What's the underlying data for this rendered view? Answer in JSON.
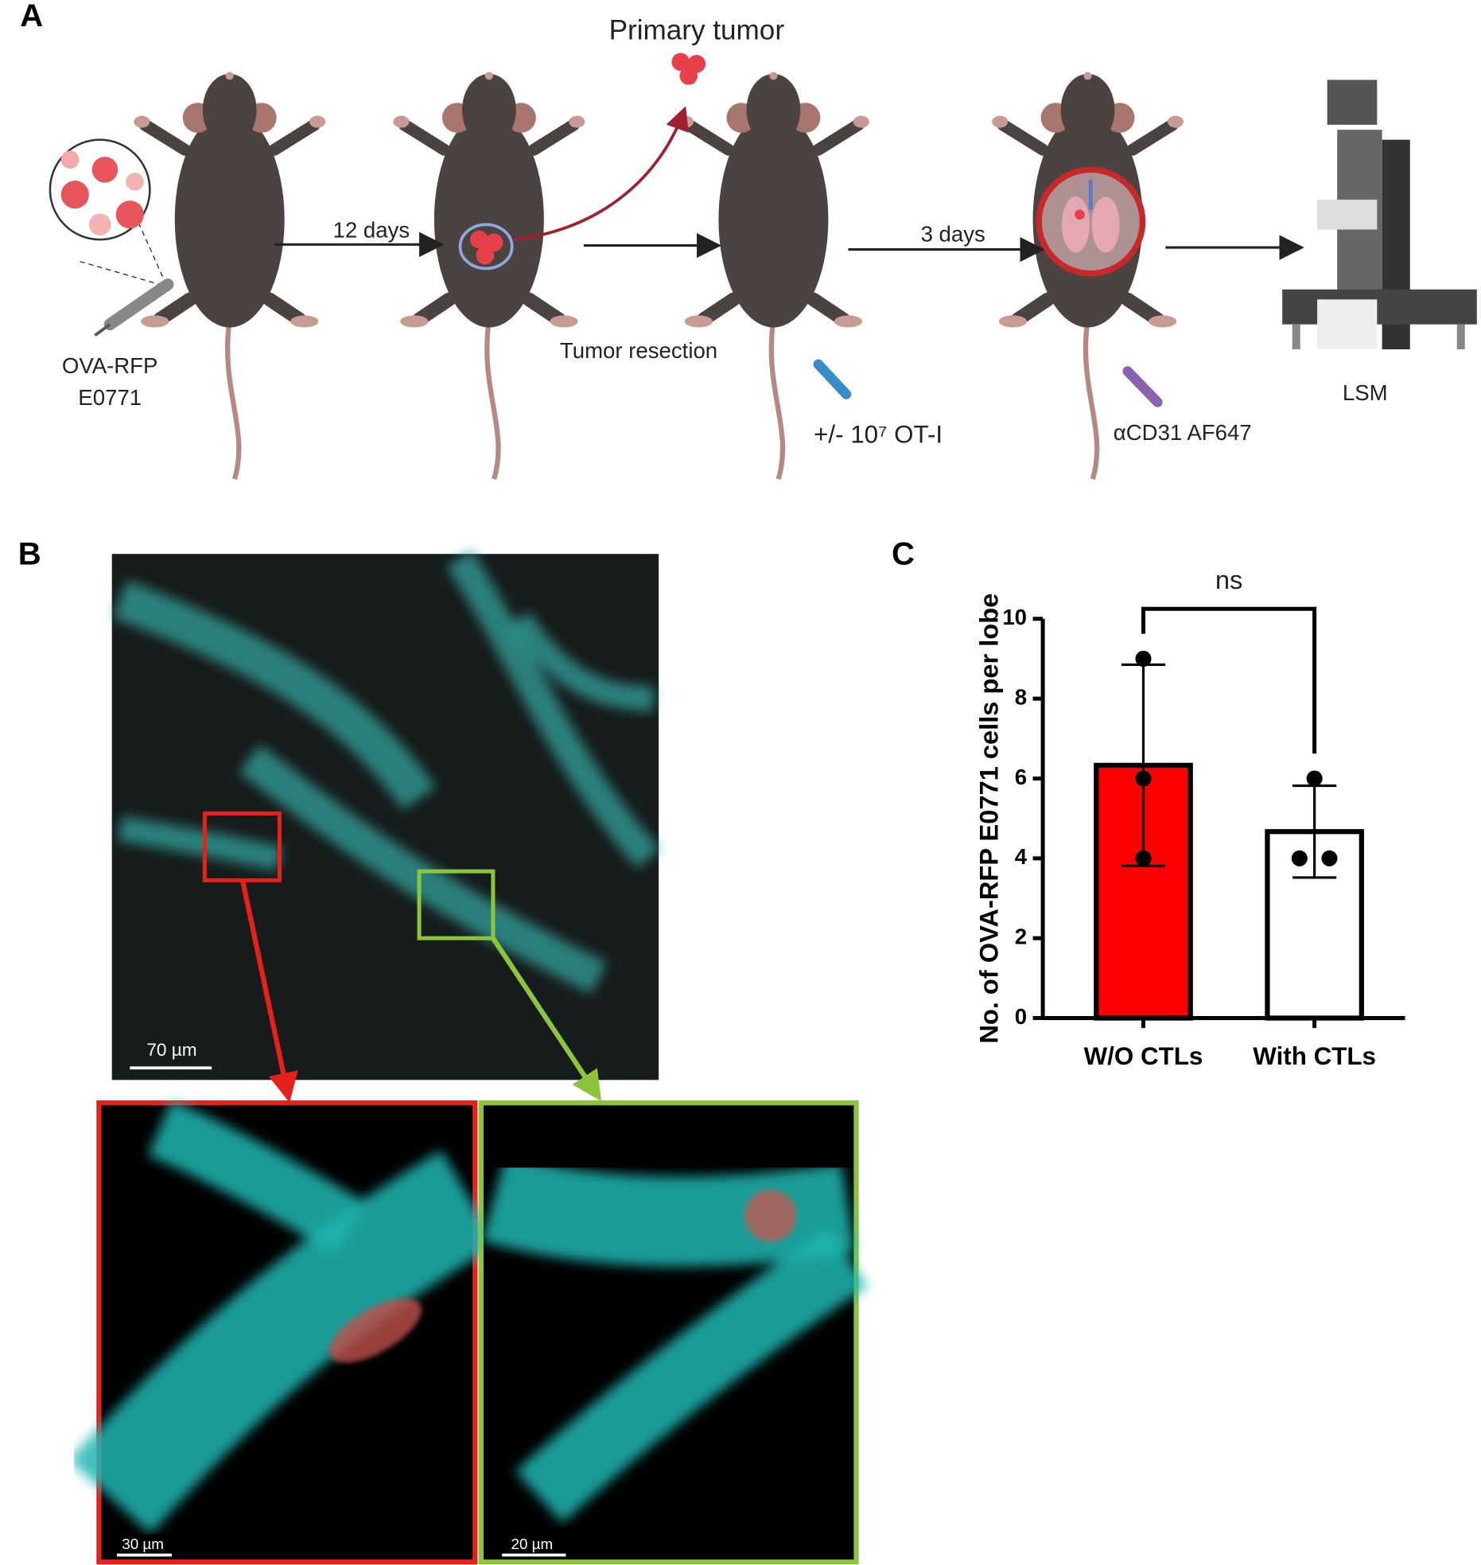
{
  "panel_labels": [
    "A",
    "B",
    "C"
  ],
  "workflow": {
    "injection_line1": "OVA-RFP",
    "injection_line2": "E0771",
    "step1": "12 days",
    "primary_tumor": "Primary tumor",
    "resection": "Tumor resection",
    "transfer": "+/- 10⁷ OT-I",
    "step2": "3 days",
    "stain": "αCD31 AF647",
    "imaging": "LSM"
  },
  "microscopy": {
    "overview_scale": "70 µm",
    "red_zoom_scale": "30 µm",
    "green_zoom_scale": "20 µm"
  },
  "chart_data": {
    "type": "bar",
    "ylabel": "No. of  OVA-RFP E0771 cells per lobe",
    "categories": [
      "W/O CTLs",
      "With CTLs"
    ],
    "values": [
      6.33,
      4.67
    ],
    "errors": [
      2.52,
      1.15
    ],
    "points": [
      [
        9,
        6,
        4
      ],
      [
        6,
        4,
        4
      ]
    ],
    "colors": [
      "#ff0000",
      "#ffffff"
    ],
    "edgecolor": "#000000",
    "annotation": "ns",
    "ylim": [
      0,
      10
    ],
    "yticks": [
      0,
      2,
      4,
      6,
      8,
      10
    ]
  }
}
